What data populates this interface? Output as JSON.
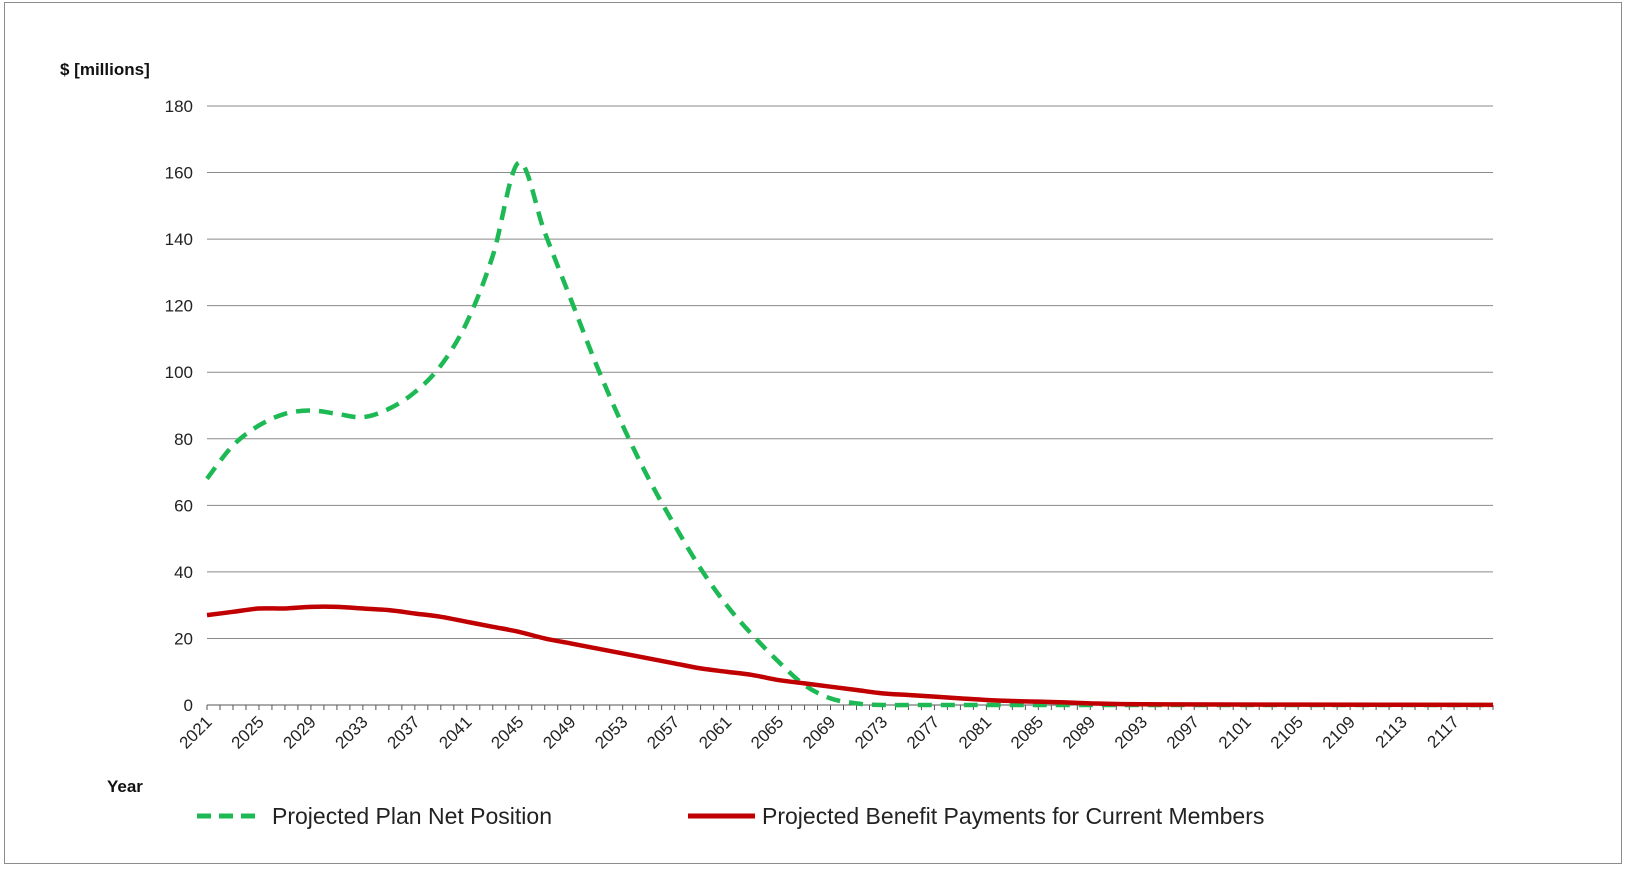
{
  "chart_data": {
    "type": "line",
    "title": "",
    "ylabel": "$ [millions]",
    "xlabel": "Year",
    "ylim": [
      0,
      180
    ],
    "y_ticks": [
      0,
      20,
      40,
      60,
      80,
      100,
      120,
      140,
      160,
      180
    ],
    "x_range": [
      2021,
      2120
    ],
    "x_tick_labels": [
      "2021",
      "2025",
      "2029",
      "2033",
      "2037",
      "2041",
      "2045",
      "2049",
      "2053",
      "2057",
      "2061",
      "2065",
      "2069",
      "2073",
      "2077",
      "2081",
      "2085",
      "2089",
      "2093",
      "2097",
      "2101",
      "2105",
      "2109",
      "2113",
      "2117"
    ],
    "grid": "horizontal",
    "legend_position": "bottom",
    "series": [
      {
        "name": "Projected Plan Net Position",
        "color": "#1db954",
        "style": "dashed",
        "points": [
          [
            2021,
            68
          ],
          [
            2023,
            78
          ],
          [
            2025,
            84
          ],
          [
            2027,
            87.5
          ],
          [
            2029,
            88.5
          ],
          [
            2031,
            87.5
          ],
          [
            2033,
            86.5
          ],
          [
            2035,
            89
          ],
          [
            2037,
            94
          ],
          [
            2039,
            102
          ],
          [
            2041,
            115
          ],
          [
            2043,
            135
          ],
          [
            2045,
            163
          ],
          [
            2047,
            142
          ],
          [
            2049,
            122
          ],
          [
            2051,
            102
          ],
          [
            2053,
            84
          ],
          [
            2055,
            68
          ],
          [
            2057,
            54
          ],
          [
            2059,
            41
          ],
          [
            2061,
            30
          ],
          [
            2063,
            21
          ],
          [
            2065,
            13
          ],
          [
            2067,
            6
          ],
          [
            2069,
            2
          ],
          [
            2071,
            0.5
          ],
          [
            2073,
            0
          ],
          [
            2080,
            0
          ],
          [
            2120,
            0
          ]
        ]
      },
      {
        "name": "Projected Benefit Payments for Current Members",
        "color": "#c00000",
        "style": "solid",
        "points": [
          [
            2021,
            27
          ],
          [
            2023,
            28
          ],
          [
            2025,
            29
          ],
          [
            2027,
            29
          ],
          [
            2029,
            29.5
          ],
          [
            2031,
            29.5
          ],
          [
            2033,
            29
          ],
          [
            2035,
            28.5
          ],
          [
            2037,
            27.5
          ],
          [
            2039,
            26.5
          ],
          [
            2041,
            25
          ],
          [
            2043,
            23.5
          ],
          [
            2045,
            22
          ],
          [
            2047,
            20
          ],
          [
            2049,
            18.5
          ],
          [
            2051,
            17
          ],
          [
            2053,
            15.5
          ],
          [
            2055,
            14
          ],
          [
            2057,
            12.5
          ],
          [
            2059,
            11
          ],
          [
            2061,
            10
          ],
          [
            2063,
            9
          ],
          [
            2065,
            7.5
          ],
          [
            2067,
            6.5
          ],
          [
            2069,
            5.5
          ],
          [
            2071,
            4.5
          ],
          [
            2073,
            3.5
          ],
          [
            2075,
            3
          ],
          [
            2077,
            2.5
          ],
          [
            2079,
            2
          ],
          [
            2081,
            1.5
          ],
          [
            2083,
            1.2
          ],
          [
            2085,
            1
          ],
          [
            2087,
            0.8
          ],
          [
            2089,
            0.5
          ],
          [
            2091,
            0.3
          ],
          [
            2095,
            0.2
          ],
          [
            2105,
            0.1
          ],
          [
            2120,
            0.05
          ]
        ]
      }
    ]
  },
  "legend": {
    "items": [
      {
        "label": "Projected Plan Net Position"
      },
      {
        "label": "Projected Benefit Payments for Current Members"
      }
    ]
  }
}
